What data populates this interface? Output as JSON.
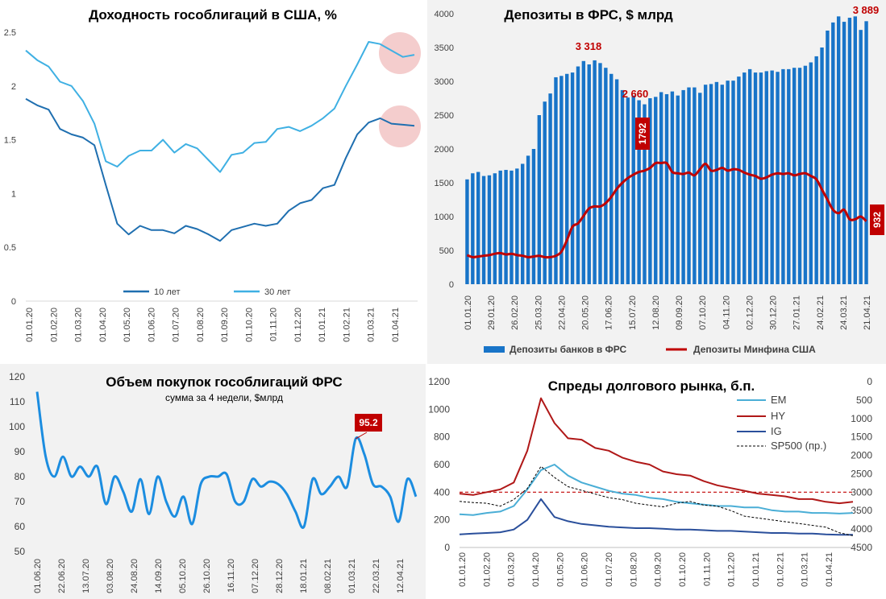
{
  "chart_data": [
    {
      "id": "yields",
      "type": "line",
      "title": "Доходность гособлигаций в США, %",
      "ylim": [
        0,
        2.5
      ],
      "yticks": [
        "0",
        "0.5",
        "1",
        "1.5",
        "2",
        "2.5"
      ],
      "xticks": [
        "01.01.20",
        "01.02.20",
        "01.03.20",
        "01.04.20",
        "01.05.20",
        "01.06.20",
        "01.07.20",
        "01.08.20",
        "01.09.20",
        "01.10.20",
        "01.11.20",
        "01.12.20",
        "01.01.21",
        "01.02.21",
        "01.03.21",
        "01.04.21"
      ],
      "legend_position": "bottom",
      "colors": {
        "y10": "#1f6fb0",
        "y30": "#3fb0e3",
        "highlight": "#f2c4c4"
      },
      "series": [
        {
          "name": "10 лет",
          "values": [
            1.88,
            1.82,
            1.78,
            1.6,
            1.55,
            1.52,
            1.45,
            1.08,
            0.72,
            0.62,
            0.7,
            0.66,
            0.66,
            0.63,
            0.7,
            0.67,
            0.62,
            0.56,
            0.66,
            0.69,
            0.72,
            0.7,
            0.72,
            0.84,
            0.91,
            0.94,
            1.05,
            1.08,
            1.33,
            1.55,
            1.66,
            1.7,
            1.65,
            1.64,
            1.63
          ]
        },
        {
          "name": "30 лет",
          "values": [
            2.33,
            2.24,
            2.18,
            2.04,
            2.0,
            1.86,
            1.65,
            1.3,
            1.25,
            1.35,
            1.4,
            1.4,
            1.5,
            1.38,
            1.46,
            1.42,
            1.31,
            1.2,
            1.36,
            1.38,
            1.47,
            1.48,
            1.6,
            1.62,
            1.58,
            1.63,
            1.7,
            1.79,
            2.0,
            2.2,
            2.41,
            2.39,
            2.33,
            2.27,
            2.29
          ]
        }
      ]
    },
    {
      "id": "fed_deposits",
      "type": "bar",
      "title": "Депозиты в ФРС, $ млрд",
      "ylim": [
        0,
        4000
      ],
      "yticks": [
        "0",
        "500",
        "1000",
        "1500",
        "2000",
        "2500",
        "3000",
        "3500",
        "4000"
      ],
      "xticks": [
        "01.01.20",
        "29.01.20",
        "26.02.20",
        "25.03.20",
        "22.04.20",
        "20.05.20",
        "17.06.20",
        "15.07.20",
        "12.08.20",
        "09.09.20",
        "07.10.20",
        "04.11.20",
        "02.12.20",
        "30.12.20",
        "27.01.21",
        "24.02.21",
        "24.03.21",
        "21.04.21"
      ],
      "legend_position": "bottom",
      "colors": {
        "bars": "#1874c8",
        "line": "#c00000",
        "label": "#c00000"
      },
      "series": [
        {
          "name": "Депозиты банков в ФРС",
          "values": [
            1550,
            1640,
            1660,
            1600,
            1610,
            1640,
            1680,
            1690,
            1680,
            1710,
            1780,
            1900,
            2000,
            2500,
            2700,
            2820,
            3060,
            3080,
            3110,
            3130,
            3220,
            3300,
            3250,
            3310,
            3270,
            3200,
            3110,
            3030,
            2870,
            2760,
            2790,
            2720,
            2660,
            2750,
            2770,
            2840,
            2810,
            2850,
            2790,
            2870,
            2910,
            2910,
            2830,
            2950,
            2960,
            2990,
            2950,
            3010,
            3010,
            3070,
            3130,
            3180,
            3130,
            3130,
            3150,
            3160,
            3140,
            3180,
            3180,
            3200,
            3200,
            3230,
            3280,
            3370,
            3500,
            3750,
            3870,
            3960,
            3880,
            3940,
            3960,
            3760,
            3889
          ]
        },
        {
          "name": "Депозиты Минфина США",
          "values": [
            430,
            400,
            410,
            420,
            430,
            450,
            460,
            440,
            450,
            430,
            420,
            400,
            410,
            420,
            400,
            400,
            420,
            480,
            650,
            850,
            900,
            1010,
            1120,
            1150,
            1150,
            1200,
            1290,
            1410,
            1500,
            1570,
            1620,
            1660,
            1680,
            1720,
            1790,
            1792,
            1790,
            1660,
            1640,
            1630,
            1650,
            1610,
            1700,
            1780,
            1680,
            1690,
            1720,
            1680,
            1700,
            1690,
            1650,
            1620,
            1600,
            1560,
            1580,
            1620,
            1640,
            1630,
            1640,
            1610,
            1630,
            1640,
            1600,
            1550,
            1400,
            1250,
            1100,
            1050,
            1100,
            960,
            960,
            1000,
            932
          ]
        }
      ],
      "annotations": [
        "3 318",
        "2 660",
        "1792",
        "3 889",
        "932"
      ]
    },
    {
      "id": "fed_purchases",
      "type": "line",
      "title": "Объем покупок гособлигаций ФРС",
      "subtitle": "сумма за 4 недели, $млрд",
      "ylim": [
        50,
        120
      ],
      "yticks": [
        "50",
        "60",
        "70",
        "80",
        "90",
        "100",
        "110",
        "120"
      ],
      "xticks": [
        "01.06.20",
        "22.06.20",
        "13.07.20",
        "03.08.20",
        "24.08.20",
        "14.09.20",
        "05.10.20",
        "26.10.20",
        "16.11.20",
        "07.12.20",
        "28.12.20",
        "18.01.21",
        "08.02.21",
        "01.03.21",
        "22.03.21",
        "12.04.21"
      ],
      "colors": {
        "line": "#1c8de0",
        "label": "#c00000"
      },
      "series": [
        {
          "name": "",
          "values": [
            114,
            88,
            80,
            88,
            80,
            84,
            80,
            84,
            69,
            80,
            74,
            66,
            79,
            65,
            80,
            70,
            64,
            72,
            61,
            77,
            80,
            80,
            81,
            70,
            70,
            79,
            76,
            78,
            77,
            73,
            66,
            60,
            79,
            73,
            76,
            80,
            76,
            95.2,
            89,
            77,
            76,
            72,
            62,
            79,
            72
          ]
        }
      ],
      "annotations": [
        "95.2"
      ]
    },
    {
      "id": "spreads",
      "type": "line",
      "title": "Спреды долгового рынка, б.п.",
      "ylim": [
        0,
        1200
      ],
      "yticks": [
        "0",
        "200",
        "400",
        "600",
        "800",
        "1000",
        "1200"
      ],
      "y2ticks": [
        "0",
        "500",
        "1000",
        "1500",
        "2000",
        "2500",
        "3000",
        "3500",
        "4000",
        "4500"
      ],
      "y2lim": [
        4500,
        0
      ],
      "xticks": [
        "01.01.20",
        "01.02.20",
        "01.03.20",
        "01.04.20",
        "01.05.20",
        "01.06.20",
        "01.07.20",
        "01.08.20",
        "01.09.20",
        "01.10.20",
        "01.11.20",
        "01.12.20",
        "01.01.21",
        "01.02.21",
        "01.03.21",
        "01.04.21"
      ],
      "legend_position": "top-right",
      "reference_line": 400,
      "colors": {
        "EM": "#4aaed6",
        "HY": "#b01818",
        "IG": "#2a4f9b",
        "SP500": "#000000"
      },
      "series": [
        {
          "name": "EM",
          "values": [
            240,
            235,
            250,
            260,
            300,
            420,
            560,
            600,
            520,
            470,
            440,
            410,
            390,
            380,
            360,
            350,
            330,
            320,
            310,
            300,
            300,
            290,
            290,
            270,
            260,
            260,
            250,
            250,
            245,
            250
          ]
        },
        {
          "name": "HY",
          "values": [
            390,
            380,
            400,
            420,
            470,
            700,
            1080,
            900,
            790,
            780,
            720,
            700,
            650,
            620,
            600,
            550,
            530,
            520,
            480,
            450,
            430,
            410,
            390,
            380,
            370,
            350,
            350,
            330,
            320,
            330
          ]
        },
        {
          "name": "IG",
          "values": [
            95,
            100,
            105,
            110,
            130,
            200,
            350,
            220,
            190,
            170,
            160,
            150,
            145,
            140,
            140,
            135,
            130,
            130,
            125,
            120,
            120,
            115,
            110,
            105,
            105,
            100,
            100,
            95,
            92,
            92
          ]
        },
        {
          "name": "SP500 (пр.)",
          "values": [
            3250,
            3280,
            3300,
            3380,
            3200,
            2900,
            2300,
            2600,
            2850,
            2950,
            3050,
            3150,
            3200,
            3300,
            3350,
            3400,
            3300,
            3250,
            3350,
            3380,
            3500,
            3650,
            3700,
            3750,
            3800,
            3850,
            3900,
            3950,
            4100,
            4180
          ]
        }
      ]
    }
  ]
}
